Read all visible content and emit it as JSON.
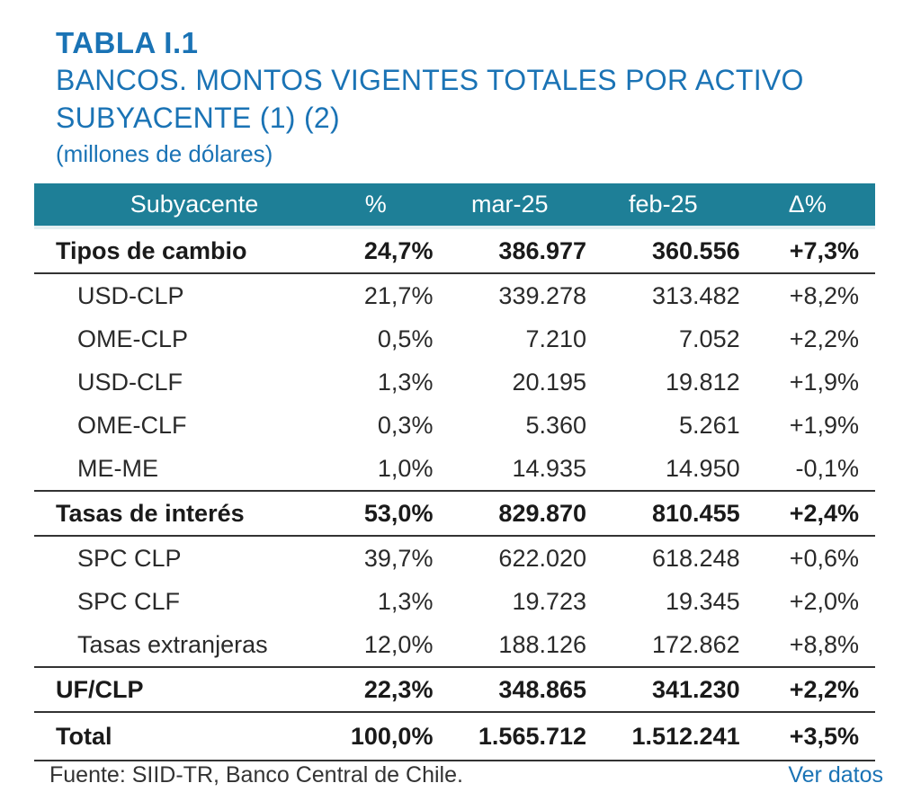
{
  "heading": {
    "number": "TABLA I.1",
    "title": "BANCOS. MONTOS VIGENTES TOTALES POR ACTIVO SUBYACENTE (1) (2)",
    "unit": "(millones de dólares)"
  },
  "table": {
    "columns": [
      "Subyacente",
      "%",
      "mar-25",
      "feb-25",
      "Δ%"
    ],
    "rows": [
      {
        "type": "grp",
        "cells": [
          "Tipos de cambio",
          "24,7%",
          "386.977",
          "360.556",
          "+7,3%"
        ]
      },
      {
        "type": "sub",
        "cells": [
          "USD-CLP",
          "21,7%",
          "339.278",
          "313.482",
          "+8,2%"
        ]
      },
      {
        "type": "sub",
        "cells": [
          "OME-CLP",
          "0,5%",
          "7.210",
          "7.052",
          "+2,2%"
        ]
      },
      {
        "type": "sub",
        "cells": [
          "USD-CLF",
          "1,3%",
          "20.195",
          "19.812",
          "+1,9%"
        ]
      },
      {
        "type": "sub",
        "cells": [
          "OME-CLF",
          "0,3%",
          "5.360",
          "5.261",
          "+1,9%"
        ]
      },
      {
        "type": "sub last-sub",
        "cells": [
          "ME-ME",
          "1,0%",
          "14.935",
          "14.950",
          "-0,1%"
        ]
      },
      {
        "type": "grp",
        "cells": [
          "Tasas de interés",
          "53,0%",
          "829.870",
          "810.455",
          "+2,4%"
        ]
      },
      {
        "type": "sub",
        "cells": [
          "SPC CLP",
          "39,7%",
          "622.020",
          "618.248",
          "+0,6%"
        ]
      },
      {
        "type": "sub",
        "cells": [
          "SPC CLF",
          "1,3%",
          "19.723",
          "19.345",
          "+2,0%"
        ]
      },
      {
        "type": "sub last-sub",
        "cells": [
          "Tasas extranjeras",
          "12,0%",
          "188.126",
          "172.862",
          "+8,8%"
        ]
      },
      {
        "type": "grp",
        "cells": [
          "UF/CLP",
          "22,3%",
          "348.865",
          "341.230",
          "+2,2%"
        ]
      },
      {
        "type": "total",
        "cells": [
          "Total",
          "100,0%",
          "1.565.712",
          "1.512.241",
          "+3,5%"
        ]
      }
    ]
  },
  "footer": {
    "source": "Fuente: SIID-TR, Banco Central de Chile.",
    "link": "Ver datos"
  }
}
